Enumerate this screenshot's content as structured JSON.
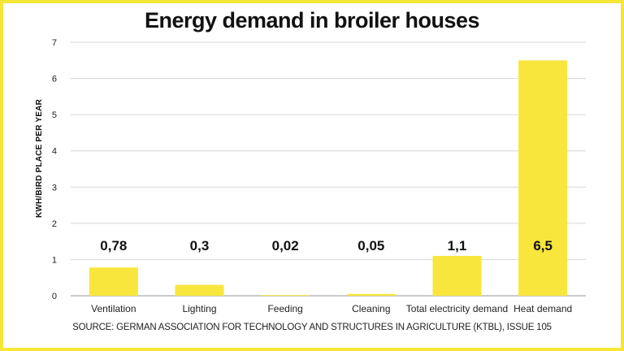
{
  "chart_data": {
    "type": "bar",
    "title": "Energy demand in broiler houses",
    "ylabel": "KWH/BIRD PLACE PER YEAR",
    "xlabel": "",
    "categories": [
      "Ventilation",
      "Lighting",
      "Feeding",
      "Cleaning",
      "Total electricity demand",
      "Heat demand"
    ],
    "values": [
      0.78,
      0.3,
      0.02,
      0.05,
      1.1,
      6.5
    ],
    "data_labels": [
      "0,78",
      "0,3",
      "0,02",
      "0,05",
      "1,1",
      "6,5"
    ],
    "ylim": [
      0,
      7
    ],
    "yticks": [
      "0",
      "1",
      "2",
      "3",
      "4",
      "5",
      "6",
      "7"
    ],
    "grid": true,
    "bar_color": "#f8e63c",
    "border_color": "#f5e637"
  },
  "source": "SOURCE: GERMAN ASSOCIATION FOR TECHNOLOGY AND STRUCTURES IN AGRICULTURE (KTBL), ISSUE 105"
}
